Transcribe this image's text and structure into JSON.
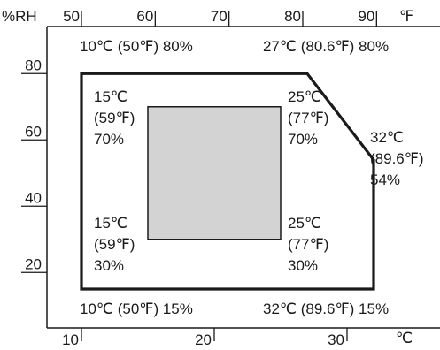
{
  "chart_data": {
    "type": "area",
    "x_axis_bottom": {
      "unit": "℃",
      "ticks": [
        "10",
        "20",
        "30"
      ],
      "tick_values": [
        10,
        20,
        30
      ]
    },
    "x_axis_top": {
      "unit": "℉",
      "ticks": [
        "50",
        "60",
        "70",
        "80",
        "90"
      ],
      "tick_values": [
        50,
        60,
        70,
        80,
        90
      ]
    },
    "y_axis": {
      "unit": "%RH",
      "ticks": [
        "20",
        "40",
        "60",
        "80"
      ],
      "tick_values": [
        20,
        40,
        60,
        80
      ]
    },
    "operating_range": {
      "polygon": [
        {
          "t": 10,
          "rh": 80
        },
        {
          "t": 27,
          "rh": 80
        },
        {
          "t": 32,
          "rh": 54
        },
        {
          "t": 32,
          "rh": 15
        },
        {
          "t": 10,
          "rh": 15
        }
      ],
      "corner_labels": [
        {
          "id": "top-left",
          "lines": [
            "10℃ (50℉) 80%"
          ]
        },
        {
          "id": "top-right",
          "lines": [
            "27℃ (80.6℉) 80%"
          ]
        },
        {
          "id": "right",
          "lines": [
            "32℃",
            "(89.6℉)",
            "54%"
          ]
        },
        {
          "id": "bottom-left",
          "lines": [
            "10℃ (50℉) 15%"
          ]
        },
        {
          "id": "bottom-right",
          "lines": [
            "32℃ (89.6℉) 15%"
          ]
        }
      ]
    },
    "recommended_range": {
      "t_min": 15,
      "t_max": 25,
      "rh_min": 30,
      "rh_max": 70,
      "corner_labels": [
        {
          "id": "upper-left",
          "lines": [
            "15℃",
            "(59℉)",
            "70%"
          ]
        },
        {
          "id": "upper-right",
          "lines": [
            "25℃",
            "(77℉)",
            "70%"
          ]
        },
        {
          "id": "lower-left",
          "lines": [
            "15℃",
            "(59℉)",
            "30%"
          ]
        },
        {
          "id": "lower-right",
          "lines": [
            "25℃",
            "(77℉)",
            "30%"
          ]
        }
      ]
    }
  }
}
